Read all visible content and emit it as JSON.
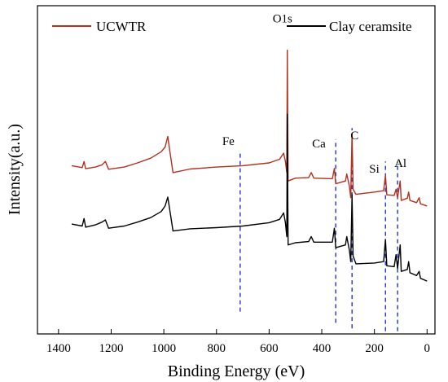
{
  "chart_data": {
    "type": "line",
    "title": "",
    "xlabel": "Binding Energy (eV)",
    "ylabel": "Intensity(a.u.)",
    "xlim": [
      1480,
      -30
    ],
    "x_reversed": true,
    "xticks": [
      1400,
      1200,
      1000,
      800,
      600,
      400,
      200,
      0
    ],
    "yticks_shown": false,
    "grid": false,
    "legend_placement": "top",
    "colors": {
      "UCWTR": "#b2301c",
      "Clay ceramsite": "#000000",
      "annotation_line": "#2233cc"
    },
    "series": [
      {
        "name": "UCWTR",
        "points": [
          [
            1350,
            0.585
          ],
          [
            1310,
            0.578
          ],
          [
            1303,
            0.6
          ],
          [
            1297,
            0.574
          ],
          [
            1260,
            0.58
          ],
          [
            1235,
            0.588
          ],
          [
            1222,
            0.6
          ],
          [
            1210,
            0.572
          ],
          [
            1150,
            0.58
          ],
          [
            1100,
            0.595
          ],
          [
            1050,
            0.612
          ],
          [
            1010,
            0.635
          ],
          [
            995,
            0.652
          ],
          [
            985,
            0.69
          ],
          [
            978,
            0.643
          ],
          [
            965,
            0.56
          ],
          [
            900,
            0.573
          ],
          [
            800,
            0.58
          ],
          [
            700,
            0.585
          ],
          [
            600,
            0.595
          ],
          [
            560,
            0.608
          ],
          [
            545,
            0.63
          ],
          [
            538,
            0.6
          ],
          [
            533,
            0.56
          ],
          [
            531,
            1.0
          ],
          [
            528,
            0.53
          ],
          [
            500,
            0.54
          ],
          [
            450,
            0.542
          ],
          [
            440,
            0.56
          ],
          [
            430,
            0.54
          ],
          [
            360,
            0.538
          ],
          [
            352,
            0.575
          ],
          [
            347,
            0.52
          ],
          [
            310,
            0.53
          ],
          [
            305,
            0.555
          ],
          [
            295,
            0.51
          ],
          [
            290,
            0.47
          ],
          [
            285,
            0.7
          ],
          [
            281,
            0.5
          ],
          [
            270,
            0.482
          ],
          [
            200,
            0.49
          ],
          [
            165,
            0.495
          ],
          [
            158,
            0.55
          ],
          [
            153,
            0.48
          ],
          [
            125,
            0.478
          ],
          [
            118,
            0.5
          ],
          [
            112,
            0.47
          ],
          [
            102,
            0.53
          ],
          [
            98,
            0.46
          ],
          [
            75,
            0.468
          ],
          [
            70,
            0.49
          ],
          [
            65,
            0.46
          ],
          [
            40,
            0.452
          ],
          [
            30,
            0.47
          ],
          [
            25,
            0.448
          ],
          [
            0,
            0.44
          ]
        ]
      },
      {
        "name": "Clay ceramsite",
        "points": [
          [
            1350,
            0.375
          ],
          [
            1310,
            0.368
          ],
          [
            1303,
            0.395
          ],
          [
            1297,
            0.364
          ],
          [
            1260,
            0.372
          ],
          [
            1235,
            0.382
          ],
          [
            1222,
            0.39
          ],
          [
            1210,
            0.36
          ],
          [
            1150,
            0.368
          ],
          [
            1100,
            0.382
          ],
          [
            1050,
            0.398
          ],
          [
            1010,
            0.42
          ],
          [
            995,
            0.44
          ],
          [
            985,
            0.472
          ],
          [
            978,
            0.43
          ],
          [
            965,
            0.35
          ],
          [
            900,
            0.358
          ],
          [
            800,
            0.362
          ],
          [
            700,
            0.368
          ],
          [
            600,
            0.38
          ],
          [
            560,
            0.392
          ],
          [
            545,
            0.415
          ],
          [
            538,
            0.38
          ],
          [
            533,
            0.33
          ],
          [
            531,
            0.77
          ],
          [
            528,
            0.3
          ],
          [
            500,
            0.308
          ],
          [
            450,
            0.312
          ],
          [
            440,
            0.33
          ],
          [
            430,
            0.31
          ],
          [
            360,
            0.31
          ],
          [
            352,
            0.36
          ],
          [
            347,
            0.29
          ],
          [
            310,
            0.3
          ],
          [
            305,
            0.33
          ],
          [
            295,
            0.28
          ],
          [
            290,
            0.24
          ],
          [
            285,
            0.48
          ],
          [
            281,
            0.26
          ],
          [
            270,
            0.232
          ],
          [
            200,
            0.235
          ],
          [
            165,
            0.24
          ],
          [
            158,
            0.32
          ],
          [
            153,
            0.225
          ],
          [
            125,
            0.222
          ],
          [
            118,
            0.265
          ],
          [
            112,
            0.215
          ],
          [
            102,
            0.3
          ],
          [
            98,
            0.205
          ],
          [
            75,
            0.212
          ],
          [
            70,
            0.24
          ],
          [
            65,
            0.2
          ],
          [
            40,
            0.19
          ],
          [
            30,
            0.205
          ],
          [
            25,
            0.18
          ],
          [
            0,
            0.17
          ]
        ]
      }
    ],
    "annotations": [
      {
        "label": "O1s",
        "x": 531,
        "y": 1.1,
        "line": false
      },
      {
        "label": "Fe",
        "x": 710,
        "y": 0.66,
        "line": true,
        "line_from": 0.06,
        "line_to": 0.64
      },
      {
        "label": "Ca",
        "x": 347,
        "y": 0.65,
        "line": true,
        "line_from": 0.02,
        "line_to": 0.68
      },
      {
        "label": "C",
        "x": 285,
        "y": 0.68,
        "line": true,
        "line_from": 0.0,
        "line_to": 0.72
      },
      {
        "label": "Si",
        "x": 158,
        "y": 0.56,
        "line": true,
        "line_from": -0.01,
        "line_to": 0.6
      },
      {
        "label": "Al",
        "x": 112,
        "y": 0.58,
        "line": true,
        "line_from": -0.01,
        "line_to": 0.6
      }
    ]
  }
}
